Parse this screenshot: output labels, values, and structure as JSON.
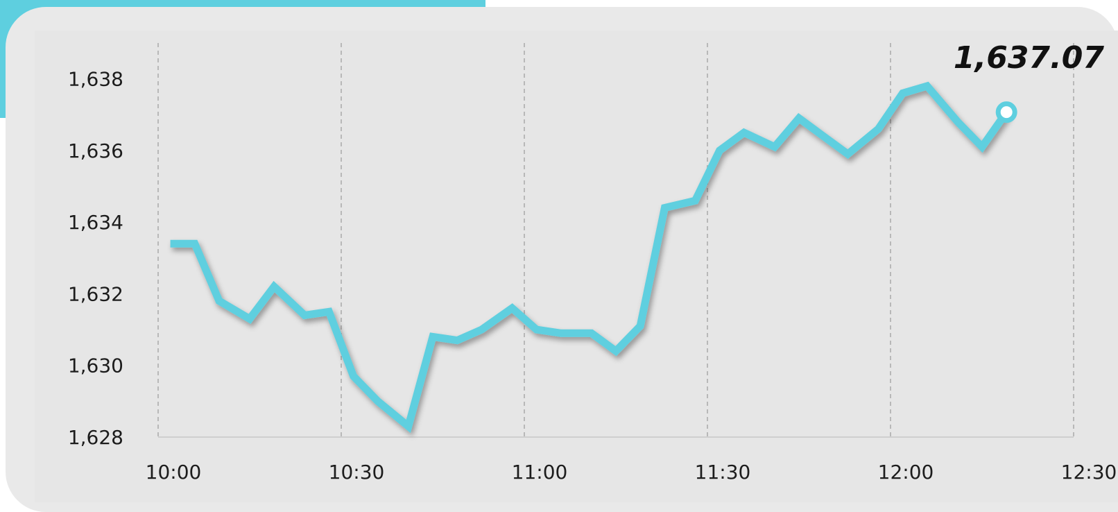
{
  "colors": {
    "accent": "#5ecfdf",
    "card": "#e9e9e9",
    "grid": "#a8a8a8",
    "text": "#1c1c1c"
  },
  "chart_data": {
    "type": "line",
    "title": "",
    "xlabel": "",
    "ylabel": "",
    "ylim": [
      1628,
      1639
    ],
    "xlim": [
      "10:00",
      "12:30"
    ],
    "x_ticks": [
      "10:00",
      "10:30",
      "11:00",
      "11:30",
      "12:00",
      "12:30"
    ],
    "y_ticks": [
      "1,628",
      "1,630",
      "1,632",
      "1,634",
      "1,636",
      "1,638"
    ],
    "grid": "vertical dashed",
    "last_value_label": "1,637.07",
    "series": [
      {
        "x": [
          "10:02",
          "10:06",
          "10:10",
          "10:15",
          "10:19",
          "10:24",
          "10:28",
          "10:32",
          "10:36",
          "10:41",
          "10:45",
          "10:49",
          "10:53",
          "10:58",
          "11:02",
          "11:06",
          "11:11",
          "11:15",
          "11:19",
          "11:23",
          "11:28",
          "11:32",
          "11:36",
          "11:41",
          "11:45",
          "11:49",
          "11:53",
          "11:58",
          "12:02",
          "12:06",
          "12:11",
          "12:15",
          "12:19"
        ],
        "y": [
          1633.4,
          1633.4,
          1631.8,
          1631.3,
          1632.2,
          1631.4,
          1631.5,
          1629.7,
          1629.0,
          1628.3,
          1630.8,
          1630.7,
          1631.0,
          1631.6,
          1631.0,
          1630.9,
          1630.9,
          1630.4,
          1631.1,
          1634.4,
          1634.6,
          1636.0,
          1636.5,
          1636.1,
          1636.9,
          1636.4,
          1635.9,
          1636.6,
          1637.6,
          1637.8,
          1636.8,
          1636.1,
          1637.07
        ]
      }
    ]
  }
}
